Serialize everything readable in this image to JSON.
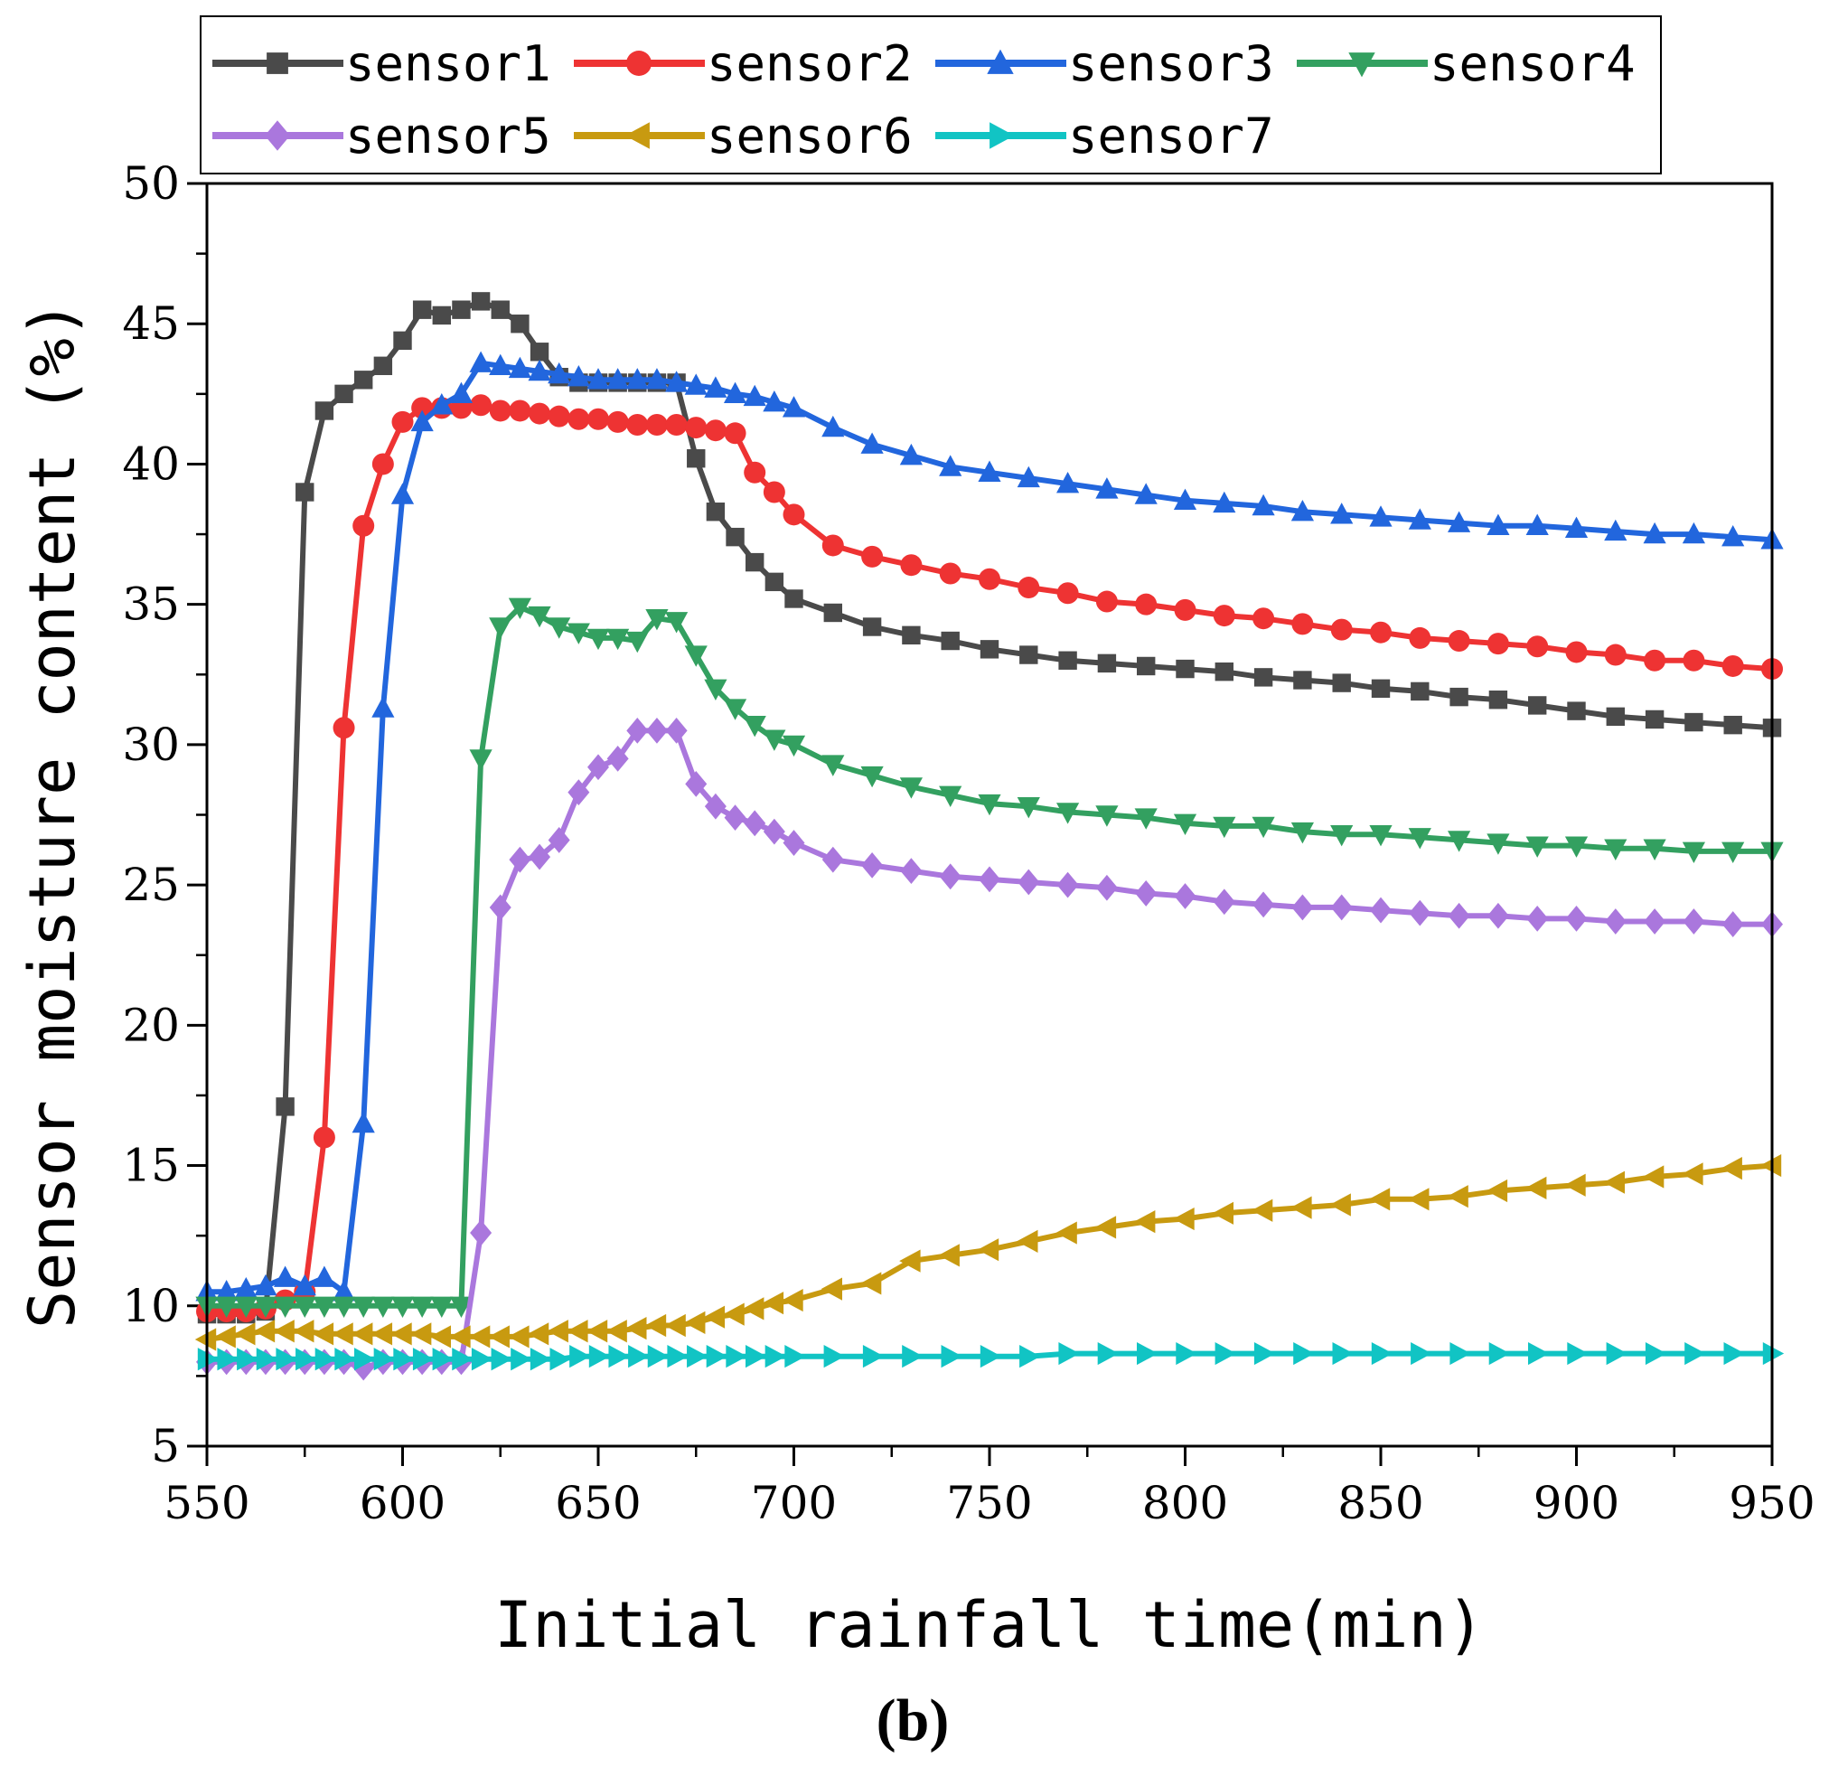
{
  "chart_data": {
    "type": "line",
    "title": "",
    "panel_label": "(b)",
    "xlabel": "Initial rainfall time(min)",
    "ylabel": "Sensor moisture content (%)",
    "xlim": [
      550,
      950
    ],
    "ylim": [
      5,
      50
    ],
    "xticks": [
      550,
      600,
      650,
      700,
      750,
      800,
      850,
      900,
      950
    ],
    "yticks": [
      5,
      10,
      15,
      20,
      25,
      30,
      35,
      40,
      45,
      50
    ],
    "legend_position": "top",
    "series": [
      {
        "name": "sensor1",
        "color": "#4a4a4a",
        "marker": "square",
        "x": [
          550,
          555,
          560,
          565,
          570,
          575,
          580,
          585,
          590,
          595,
          600,
          605,
          610,
          615,
          620,
          625,
          630,
          635,
          640,
          645,
          650,
          655,
          660,
          665,
          670,
          675,
          680,
          685,
          690,
          695,
          700,
          710,
          720,
          730,
          740,
          750,
          760,
          770,
          780,
          790,
          800,
          810,
          820,
          830,
          840,
          850,
          860,
          870,
          880,
          890,
          900,
          910,
          920,
          930,
          940,
          950
        ],
        "y": [
          9.7,
          9.7,
          9.7,
          9.8,
          17.1,
          39.0,
          41.9,
          42.5,
          43.0,
          43.5,
          44.4,
          45.5,
          45.3,
          45.5,
          45.8,
          45.5,
          45.0,
          44.0,
          43.1,
          42.9,
          42.9,
          42.9,
          42.9,
          42.9,
          42.9,
          40.2,
          38.3,
          37.4,
          36.5,
          35.8,
          35.2,
          34.7,
          34.2,
          33.9,
          33.7,
          33.4,
          33.2,
          33.0,
          32.9,
          32.8,
          32.7,
          32.6,
          32.4,
          32.3,
          32.2,
          32.0,
          31.9,
          31.7,
          31.6,
          31.4,
          31.2,
          31.0,
          30.9,
          30.8,
          30.7,
          30.6
        ]
      },
      {
        "name": "sensor2",
        "color": "#ee3333",
        "marker": "circle",
        "x": [
          550,
          555,
          560,
          565,
          570,
          575,
          580,
          585,
          590,
          595,
          600,
          605,
          610,
          615,
          620,
          625,
          630,
          635,
          640,
          645,
          650,
          655,
          660,
          665,
          670,
          675,
          680,
          685,
          690,
          695,
          700,
          710,
          720,
          730,
          740,
          750,
          760,
          770,
          780,
          790,
          800,
          810,
          820,
          830,
          840,
          850,
          860,
          870,
          880,
          890,
          900,
          910,
          920,
          930,
          940,
          950
        ],
        "y": [
          9.8,
          9.8,
          9.8,
          9.9,
          10.2,
          10.5,
          16.0,
          30.6,
          37.8,
          40.0,
          41.5,
          42.0,
          42.0,
          42.0,
          42.1,
          41.9,
          41.9,
          41.8,
          41.7,
          41.6,
          41.6,
          41.5,
          41.4,
          41.4,
          41.4,
          41.3,
          41.2,
          41.1,
          39.7,
          39.0,
          38.2,
          37.1,
          36.7,
          36.4,
          36.1,
          35.9,
          35.6,
          35.4,
          35.1,
          35.0,
          34.8,
          34.6,
          34.5,
          34.3,
          34.1,
          34.0,
          33.8,
          33.7,
          33.6,
          33.5,
          33.3,
          33.2,
          33.0,
          33.0,
          32.8,
          32.7
        ]
      },
      {
        "name": "sensor3",
        "color": "#2266dd",
        "marker": "triangle-up",
        "x": [
          550,
          555,
          560,
          565,
          570,
          575,
          580,
          585,
          590,
          595,
          600,
          605,
          610,
          615,
          620,
          625,
          630,
          635,
          640,
          645,
          650,
          655,
          660,
          665,
          670,
          675,
          680,
          685,
          690,
          695,
          700,
          710,
          720,
          730,
          740,
          750,
          760,
          770,
          780,
          790,
          800,
          810,
          820,
          830,
          840,
          850,
          860,
          870,
          880,
          890,
          900,
          910,
          920,
          930,
          940,
          950
        ],
        "y": [
          10.5,
          10.5,
          10.6,
          10.7,
          11.0,
          10.7,
          11.0,
          10.5,
          16.5,
          31.3,
          38.9,
          41.5,
          42.1,
          42.5,
          43.6,
          43.5,
          43.4,
          43.3,
          43.2,
          43.1,
          43.0,
          43.0,
          43.0,
          43.0,
          42.9,
          42.8,
          42.7,
          42.5,
          42.4,
          42.2,
          42.0,
          41.3,
          40.7,
          40.3,
          39.9,
          39.7,
          39.5,
          39.3,
          39.1,
          38.9,
          38.7,
          38.6,
          38.5,
          38.3,
          38.2,
          38.1,
          38.0,
          37.9,
          37.8,
          37.8,
          37.7,
          37.6,
          37.5,
          37.5,
          37.4,
          37.3
        ]
      },
      {
        "name": "sensor4",
        "color": "#33a060",
        "marker": "triangle-down",
        "x": [
          550,
          555,
          560,
          565,
          570,
          575,
          580,
          585,
          590,
          595,
          600,
          605,
          610,
          615,
          620,
          625,
          630,
          635,
          640,
          645,
          650,
          655,
          660,
          665,
          670,
          675,
          680,
          685,
          690,
          695,
          700,
          710,
          720,
          730,
          740,
          750,
          760,
          770,
          780,
          790,
          800,
          810,
          820,
          830,
          840,
          850,
          860,
          870,
          880,
          890,
          900,
          910,
          920,
          930,
          940,
          950
        ],
        "y": [
          10.0,
          10.0,
          10.0,
          10.0,
          10.0,
          10.0,
          10.0,
          10.0,
          10.0,
          10.0,
          10.0,
          10.0,
          10.0,
          10.0,
          29.5,
          34.2,
          34.9,
          34.6,
          34.2,
          34.0,
          33.8,
          33.8,
          33.7,
          34.5,
          34.4,
          33.2,
          32.0,
          31.3,
          30.7,
          30.2,
          30.0,
          29.3,
          28.9,
          28.5,
          28.2,
          27.9,
          27.8,
          27.6,
          27.5,
          27.4,
          27.2,
          27.1,
          27.1,
          26.9,
          26.8,
          26.8,
          26.7,
          26.6,
          26.5,
          26.4,
          26.4,
          26.3,
          26.3,
          26.2,
          26.2,
          26.2
        ]
      },
      {
        "name": "sensor5",
        "color": "#aa77dd",
        "marker": "diamond",
        "x": [
          550,
          555,
          560,
          565,
          570,
          575,
          580,
          585,
          590,
          595,
          600,
          605,
          610,
          615,
          620,
          625,
          630,
          635,
          640,
          645,
          650,
          655,
          660,
          665,
          670,
          675,
          680,
          685,
          690,
          695,
          700,
          710,
          720,
          730,
          740,
          750,
          760,
          770,
          780,
          790,
          800,
          810,
          820,
          830,
          840,
          850,
          860,
          870,
          880,
          890,
          900,
          910,
          920,
          930,
          940,
          950
        ],
        "y": [
          8.0,
          8.0,
          8.0,
          8.0,
          8.0,
          8.0,
          8.0,
          8.0,
          7.8,
          8.0,
          8.0,
          8.0,
          8.0,
          8.0,
          12.6,
          24.2,
          25.9,
          26.0,
          26.6,
          28.3,
          29.2,
          29.5,
          30.5,
          30.5,
          30.5,
          28.6,
          27.8,
          27.4,
          27.2,
          26.9,
          26.5,
          25.9,
          25.7,
          25.5,
          25.3,
          25.2,
          25.1,
          25.0,
          24.9,
          24.7,
          24.6,
          24.4,
          24.3,
          24.2,
          24.2,
          24.1,
          24.0,
          23.9,
          23.9,
          23.8,
          23.8,
          23.7,
          23.7,
          23.7,
          23.6,
          23.6
        ]
      },
      {
        "name": "sensor6",
        "color": "#c89a10",
        "marker": "triangle-left",
        "x": [
          550,
          555,
          560,
          565,
          570,
          575,
          580,
          585,
          590,
          595,
          600,
          605,
          610,
          615,
          620,
          625,
          630,
          635,
          640,
          645,
          650,
          655,
          660,
          665,
          670,
          675,
          680,
          685,
          690,
          695,
          700,
          710,
          720,
          730,
          740,
          750,
          760,
          770,
          780,
          790,
          800,
          810,
          820,
          830,
          840,
          850,
          860,
          870,
          880,
          890,
          900,
          910,
          920,
          930,
          940,
          950
        ],
        "y": [
          8.8,
          8.9,
          9.0,
          9.1,
          9.1,
          9.1,
          9.0,
          9.0,
          9.0,
          9.0,
          9.0,
          9.0,
          8.9,
          8.9,
          8.9,
          8.9,
          8.9,
          9.0,
          9.1,
          9.1,
          9.1,
          9.1,
          9.2,
          9.3,
          9.3,
          9.4,
          9.6,
          9.7,
          9.9,
          10.1,
          10.2,
          10.6,
          10.8,
          11.6,
          11.8,
          12.0,
          12.3,
          12.6,
          12.8,
          13.0,
          13.1,
          13.3,
          13.4,
          13.5,
          13.6,
          13.8,
          13.8,
          13.9,
          14.1,
          14.2,
          14.3,
          14.4,
          14.6,
          14.7,
          14.9,
          15.0
        ]
      },
      {
        "name": "sensor7",
        "color": "#11c4c4",
        "marker": "triangle-right",
        "x": [
          550,
          555,
          560,
          565,
          570,
          575,
          580,
          585,
          590,
          595,
          600,
          605,
          610,
          615,
          620,
          625,
          630,
          635,
          640,
          645,
          650,
          655,
          660,
          665,
          670,
          675,
          680,
          685,
          690,
          695,
          700,
          710,
          720,
          730,
          740,
          750,
          760,
          770,
          780,
          790,
          800,
          810,
          820,
          830,
          840,
          850,
          860,
          870,
          880,
          890,
          900,
          910,
          920,
          930,
          940,
          950
        ],
        "y": [
          8.1,
          8.1,
          8.1,
          8.1,
          8.1,
          8.1,
          8.1,
          8.1,
          8.1,
          8.1,
          8.1,
          8.1,
          8.1,
          8.1,
          8.1,
          8.1,
          8.1,
          8.1,
          8.1,
          8.2,
          8.2,
          8.2,
          8.2,
          8.2,
          8.2,
          8.2,
          8.2,
          8.2,
          8.2,
          8.2,
          8.2,
          8.2,
          8.2,
          8.2,
          8.2,
          8.2,
          8.2,
          8.3,
          8.3,
          8.3,
          8.3,
          8.3,
          8.3,
          8.3,
          8.3,
          8.3,
          8.3,
          8.3,
          8.3,
          8.3,
          8.3,
          8.3,
          8.3,
          8.3,
          8.3,
          8.3
        ]
      }
    ]
  }
}
